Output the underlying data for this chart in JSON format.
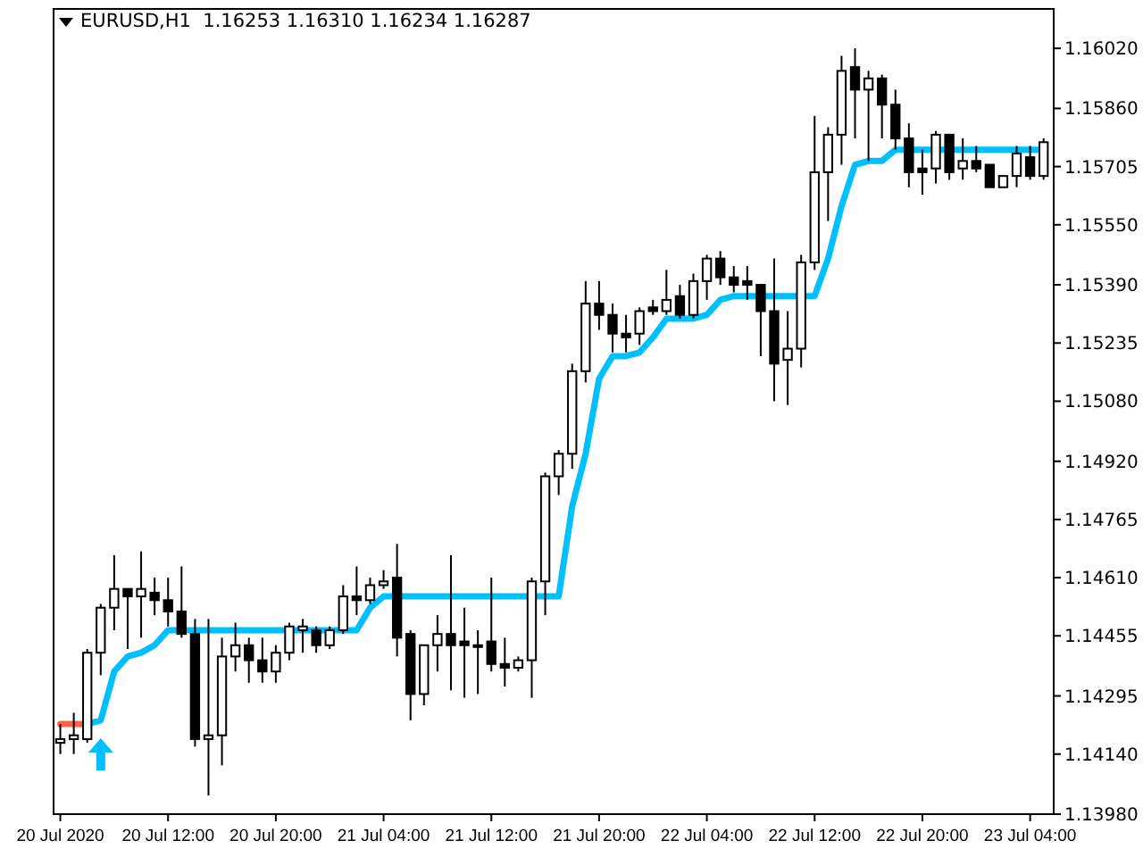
{
  "chart_data": {
    "type": "candlestick",
    "title": "EURUSD,H1  1.16253 1.16310 1.16234 1.16287",
    "x": [
      "2020-07-20T04:00",
      "2020-07-20T05:00",
      "2020-07-20T06:00",
      "2020-07-20T07:00",
      "2020-07-20T08:00",
      "2020-07-20T09:00",
      "2020-07-20T10:00",
      "2020-07-20T11:00",
      "2020-07-20T12:00",
      "2020-07-20T13:00",
      "2020-07-20T14:00",
      "2020-07-20T15:00",
      "2020-07-20T16:00",
      "2020-07-20T17:00",
      "2020-07-20T18:00",
      "2020-07-20T19:00",
      "2020-07-20T20:00",
      "2020-07-20T21:00",
      "2020-07-20T22:00",
      "2020-07-20T23:00",
      "2020-07-21T00:00",
      "2020-07-21T01:00",
      "2020-07-21T02:00",
      "2020-07-21T03:00",
      "2020-07-21T04:00",
      "2020-07-21T05:00",
      "2020-07-21T06:00",
      "2020-07-21T07:00",
      "2020-07-21T08:00",
      "2020-07-21T09:00",
      "2020-07-21T10:00",
      "2020-07-21T11:00",
      "2020-07-21T12:00",
      "2020-07-21T13:00",
      "2020-07-21T14:00",
      "2020-07-21T15:00",
      "2020-07-21T16:00",
      "2020-07-21T17:00",
      "2020-07-21T18:00",
      "2020-07-21T19:00",
      "2020-07-21T20:00",
      "2020-07-21T21:00",
      "2020-07-21T22:00",
      "2020-07-21T23:00",
      "2020-07-22T00:00",
      "2020-07-22T01:00",
      "2020-07-22T02:00",
      "2020-07-22T03:00",
      "2020-07-22T04:00",
      "2020-07-22T05:00",
      "2020-07-22T06:00",
      "2020-07-22T07:00",
      "2020-07-22T08:00",
      "2020-07-22T09:00",
      "2020-07-22T10:00",
      "2020-07-22T11:00",
      "2020-07-22T12:00",
      "2020-07-22T13:00",
      "2020-07-22T14:00",
      "2020-07-22T15:00",
      "2020-07-22T16:00",
      "2020-07-22T17:00",
      "2020-07-22T18:00",
      "2020-07-22T19:00",
      "2020-07-22T20:00",
      "2020-07-22T21:00",
      "2020-07-22T22:00",
      "2020-07-22T23:00",
      "2020-07-23T00:00",
      "2020-07-23T01:00",
      "2020-07-23T02:00",
      "2020-07-23T03:00",
      "2020-07-23T04:00",
      "2020-07-23T05:00"
    ],
    "ohlc": [
      [
        1.1417,
        1.1422,
        1.1414,
        1.1418
      ],
      [
        1.1418,
        1.1425,
        1.1414,
        1.1419
      ],
      [
        1.1418,
        1.1442,
        1.1417,
        1.1441
      ],
      [
        1.1441,
        1.1454,
        1.1435,
        1.1453
      ],
      [
        1.1453,
        1.1467,
        1.1447,
        1.1458
      ],
      [
        1.1458,
        1.1458,
        1.1442,
        1.1456
      ],
      [
        1.1456,
        1.1468,
        1.1445,
        1.1458
      ],
      [
        1.1457,
        1.1461,
        1.1451,
        1.1455
      ],
      [
        1.1455,
        1.1461,
        1.1448,
        1.1452
      ],
      [
        1.1452,
        1.1464,
        1.1445,
        1.1446
      ],
      [
        1.1446,
        1.145,
        1.1416,
        1.1418
      ],
      [
        1.1418,
        1.145,
        1.1403,
        1.1419
      ],
      [
        1.1419,
        1.1445,
        1.1411,
        1.144
      ],
      [
        1.144,
        1.1449,
        1.1436,
        1.1443
      ],
      [
        1.1443,
        1.1445,
        1.1433,
        1.1439
      ],
      [
        1.1439,
        1.1445,
        1.1433,
        1.1436
      ],
      [
        1.1436,
        1.1443,
        1.1433,
        1.1441
      ],
      [
        1.1441,
        1.1449,
        1.1439,
        1.1448
      ],
      [
        1.1447,
        1.145,
        1.1441,
        1.1448
      ],
      [
        1.1447,
        1.1448,
        1.1441,
        1.1443
      ],
      [
        1.1443,
        1.1448,
        1.1442,
        1.1447
      ],
      [
        1.1447,
        1.1459,
        1.1446,
        1.1456
      ],
      [
        1.1456,
        1.1464,
        1.1451,
        1.1455
      ],
      [
        1.1455,
        1.1461,
        1.1454,
        1.1459
      ],
      [
        1.1459,
        1.1463,
        1.1458,
        1.146
      ],
      [
        1.1461,
        1.147,
        1.144,
        1.1445
      ],
      [
        1.1446,
        1.1447,
        1.1423,
        1.143
      ],
      [
        1.143,
        1.1443,
        1.1427,
        1.1443
      ],
      [
        1.1443,
        1.1451,
        1.1436,
        1.1446
      ],
      [
        1.1446,
        1.1467,
        1.1431,
        1.1443
      ],
      [
        1.1444,
        1.1453,
        1.1429,
        1.1443
      ],
      [
        1.1443,
        1.1447,
        1.143,
        1.1443
      ],
      [
        1.1444,
        1.1461,
        1.1436,
        1.1438
      ],
      [
        1.1438,
        1.1445,
        1.1432,
        1.1437
      ],
      [
        1.1437,
        1.144,
        1.1436,
        1.1439
      ],
      [
        1.1439,
        1.1461,
        1.1429,
        1.146
      ],
      [
        1.146,
        1.1489,
        1.1451,
        1.1488
      ],
      [
        1.1488,
        1.1495,
        1.1483,
        1.1494
      ],
      [
        1.1494,
        1.1518,
        1.149,
        1.1516
      ],
      [
        1.1516,
        1.154,
        1.1513,
        1.1534
      ],
      [
        1.1534,
        1.154,
        1.1527,
        1.1531
      ],
      [
        1.1531,
        1.1534,
        1.1521,
        1.1526
      ],
      [
        1.1526,
        1.1531,
        1.1521,
        1.1525
      ],
      [
        1.1526,
        1.1533,
        1.1523,
        1.1532
      ],
      [
        1.1533,
        1.1535,
        1.1531,
        1.1532
      ],
      [
        1.1532,
        1.1543,
        1.1531,
        1.1535
      ],
      [
        1.1536,
        1.1539,
        1.153,
        1.1531
      ],
      [
        1.1531,
        1.1542,
        1.153,
        1.154
      ],
      [
        1.154,
        1.1547,
        1.1535,
        1.1546
      ],
      [
        1.1546,
        1.1548,
        1.1539,
        1.1541
      ],
      [
        1.1541,
        1.1544,
        1.1537,
        1.1539
      ],
      [
        1.154,
        1.1544,
        1.1535,
        1.1539
      ],
      [
        1.1539,
        1.1539,
        1.152,
        1.1532
      ],
      [
        1.1532,
        1.1546,
        1.1508,
        1.1518
      ],
      [
        1.1519,
        1.1532,
        1.1507,
        1.1522
      ],
      [
        1.1522,
        1.1547,
        1.1517,
        1.1545
      ],
      [
        1.1545,
        1.1584,
        1.1543,
        1.1569
      ],
      [
        1.1569,
        1.1581,
        1.1556,
        1.1579
      ],
      [
        1.1579,
        1.16,
        1.1571,
        1.1596
      ],
      [
        1.1597,
        1.1602,
        1.1578,
        1.1591
      ],
      [
        1.1591,
        1.1596,
        1.1572,
        1.1594
      ],
      [
        1.1594,
        1.1595,
        1.1578,
        1.1587
      ],
      [
        1.1587,
        1.1591,
        1.1575,
        1.1578
      ],
      [
        1.1578,
        1.1582,
        1.1565,
        1.1569
      ],
      [
        1.157,
        1.1575,
        1.1563,
        1.1569
      ],
      [
        1.157,
        1.158,
        1.1566,
        1.1579
      ],
      [
        1.1579,
        1.1579,
        1.1567,
        1.1569
      ],
      [
        1.157,
        1.1578,
        1.1567,
        1.1572
      ],
      [
        1.1572,
        1.1576,
        1.1569,
        1.157
      ],
      [
        1.1571,
        1.1571,
        1.1565,
        1.1565
      ],
      [
        1.1565,
        1.1568,
        1.1565,
        1.1568
      ],
      [
        1.1568,
        1.1576,
        1.1565,
        1.1574
      ],
      [
        1.1573,
        1.1576,
        1.1567,
        1.1568
      ],
      [
        1.1568,
        1.1578,
        1.1567,
        1.1577
      ]
    ],
    "series": [
      {
        "type": "line",
        "color": "#ff6347",
        "values": [
          1.1422,
          1.1422,
          1.1422,
          null,
          null,
          null,
          null,
          null,
          null,
          null,
          null,
          null,
          null,
          null,
          null,
          null,
          null,
          null,
          null,
          null,
          null,
          null,
          null,
          null,
          null,
          null,
          null,
          null,
          null,
          null,
          null,
          null,
          null,
          null,
          null,
          null,
          null,
          null,
          null,
          null,
          null,
          null,
          null,
          null,
          null,
          null,
          null,
          null,
          null,
          null,
          null,
          null,
          null,
          null,
          null,
          null,
          null,
          null,
          null,
          null,
          null,
          null,
          null,
          null,
          null,
          null,
          null,
          null,
          null,
          null,
          null,
          null,
          null,
          null
        ]
      },
      {
        "type": "line",
        "color": "#00bfff",
        "values": [
          null,
          null,
          1.1422,
          1.1423,
          1.1436,
          1.144,
          1.1441,
          1.1443,
          1.1447,
          1.1447,
          1.1447,
          1.1447,
          1.1447,
          1.1447,
          1.1447,
          1.1447,
          1.1447,
          1.1447,
          1.1447,
          1.1447,
          1.1447,
          1.1447,
          1.1447,
          1.1453,
          1.1456,
          1.1456,
          1.1456,
          1.1456,
          1.1456,
          1.1456,
          1.1456,
          1.1456,
          1.1456,
          1.1456,
          1.1456,
          1.1456,
          1.1456,
          1.1456,
          1.148,
          1.1494,
          1.1514,
          1.152,
          1.152,
          1.1521,
          1.1525,
          1.153,
          1.153,
          1.153,
          1.1531,
          1.1535,
          1.1536,
          1.1536,
          1.1536,
          1.1536,
          1.1536,
          1.1536,
          1.1536,
          1.1546,
          1.156,
          1.1571,
          1.1572,
          1.1572,
          1.1575,
          1.1575,
          1.1575,
          1.1575,
          1.1575,
          1.1575,
          1.1575,
          1.1575,
          1.1575,
          1.1575,
          1.1575,
          1.1575
        ]
      }
    ],
    "line_style": "solid",
    "xlim": [
      "2020-07-20T03:30",
      "2020-07-23T05:45"
    ],
    "xticks": [
      {
        "value": "2020-07-20T04:00",
        "label": "20 Jul 2020"
      },
      {
        "value": "2020-07-20T12:00",
        "label": "20 Jul 12:00"
      },
      {
        "value": "2020-07-20T20:00",
        "label": "20 Jul 20:00"
      },
      {
        "value": "2020-07-21T04:00",
        "label": "21 Jul 04:00"
      },
      {
        "value": "2020-07-21T12:00",
        "label": "21 Jul 12:00"
      },
      {
        "value": "2020-07-21T20:00",
        "label": "21 Jul 20:00"
      },
      {
        "value": "2020-07-22T04:00",
        "label": "22 Jul 04:00"
      },
      {
        "value": "2020-07-22T12:00",
        "label": "22 Jul 12:00"
      },
      {
        "value": "2020-07-22T20:00",
        "label": "22 Jul 20:00"
      },
      {
        "value": "2020-07-23T04:00",
        "label": "23 Jul 04:00"
      }
    ],
    "ylim": [
      1.1398,
      1.16125
    ],
    "yticks": [
      {
        "value": 1.1602,
        "label": "1.16020"
      },
      {
        "value": 1.1586,
        "label": "1.15860"
      },
      {
        "value": 1.15705,
        "label": "1.15705"
      },
      {
        "value": 1.1555,
        "label": "1.15550"
      },
      {
        "value": 1.1539,
        "label": "1.15390"
      },
      {
        "value": 1.15235,
        "label": "1.15235"
      },
      {
        "value": 1.1508,
        "label": "1.15080"
      },
      {
        "value": 1.1492,
        "label": "1.14920"
      },
      {
        "value": 1.14765,
        "label": "1.14765"
      },
      {
        "value": 1.1461,
        "label": "1.14610"
      },
      {
        "value": 1.14455,
        "label": "1.14455"
      },
      {
        "value": 1.14295,
        "label": "1.14295"
      },
      {
        "value": 1.1414,
        "label": "1.14140"
      },
      {
        "value": 1.1398,
        "label": "1.13980"
      }
    ],
    "grid": false
  }
}
